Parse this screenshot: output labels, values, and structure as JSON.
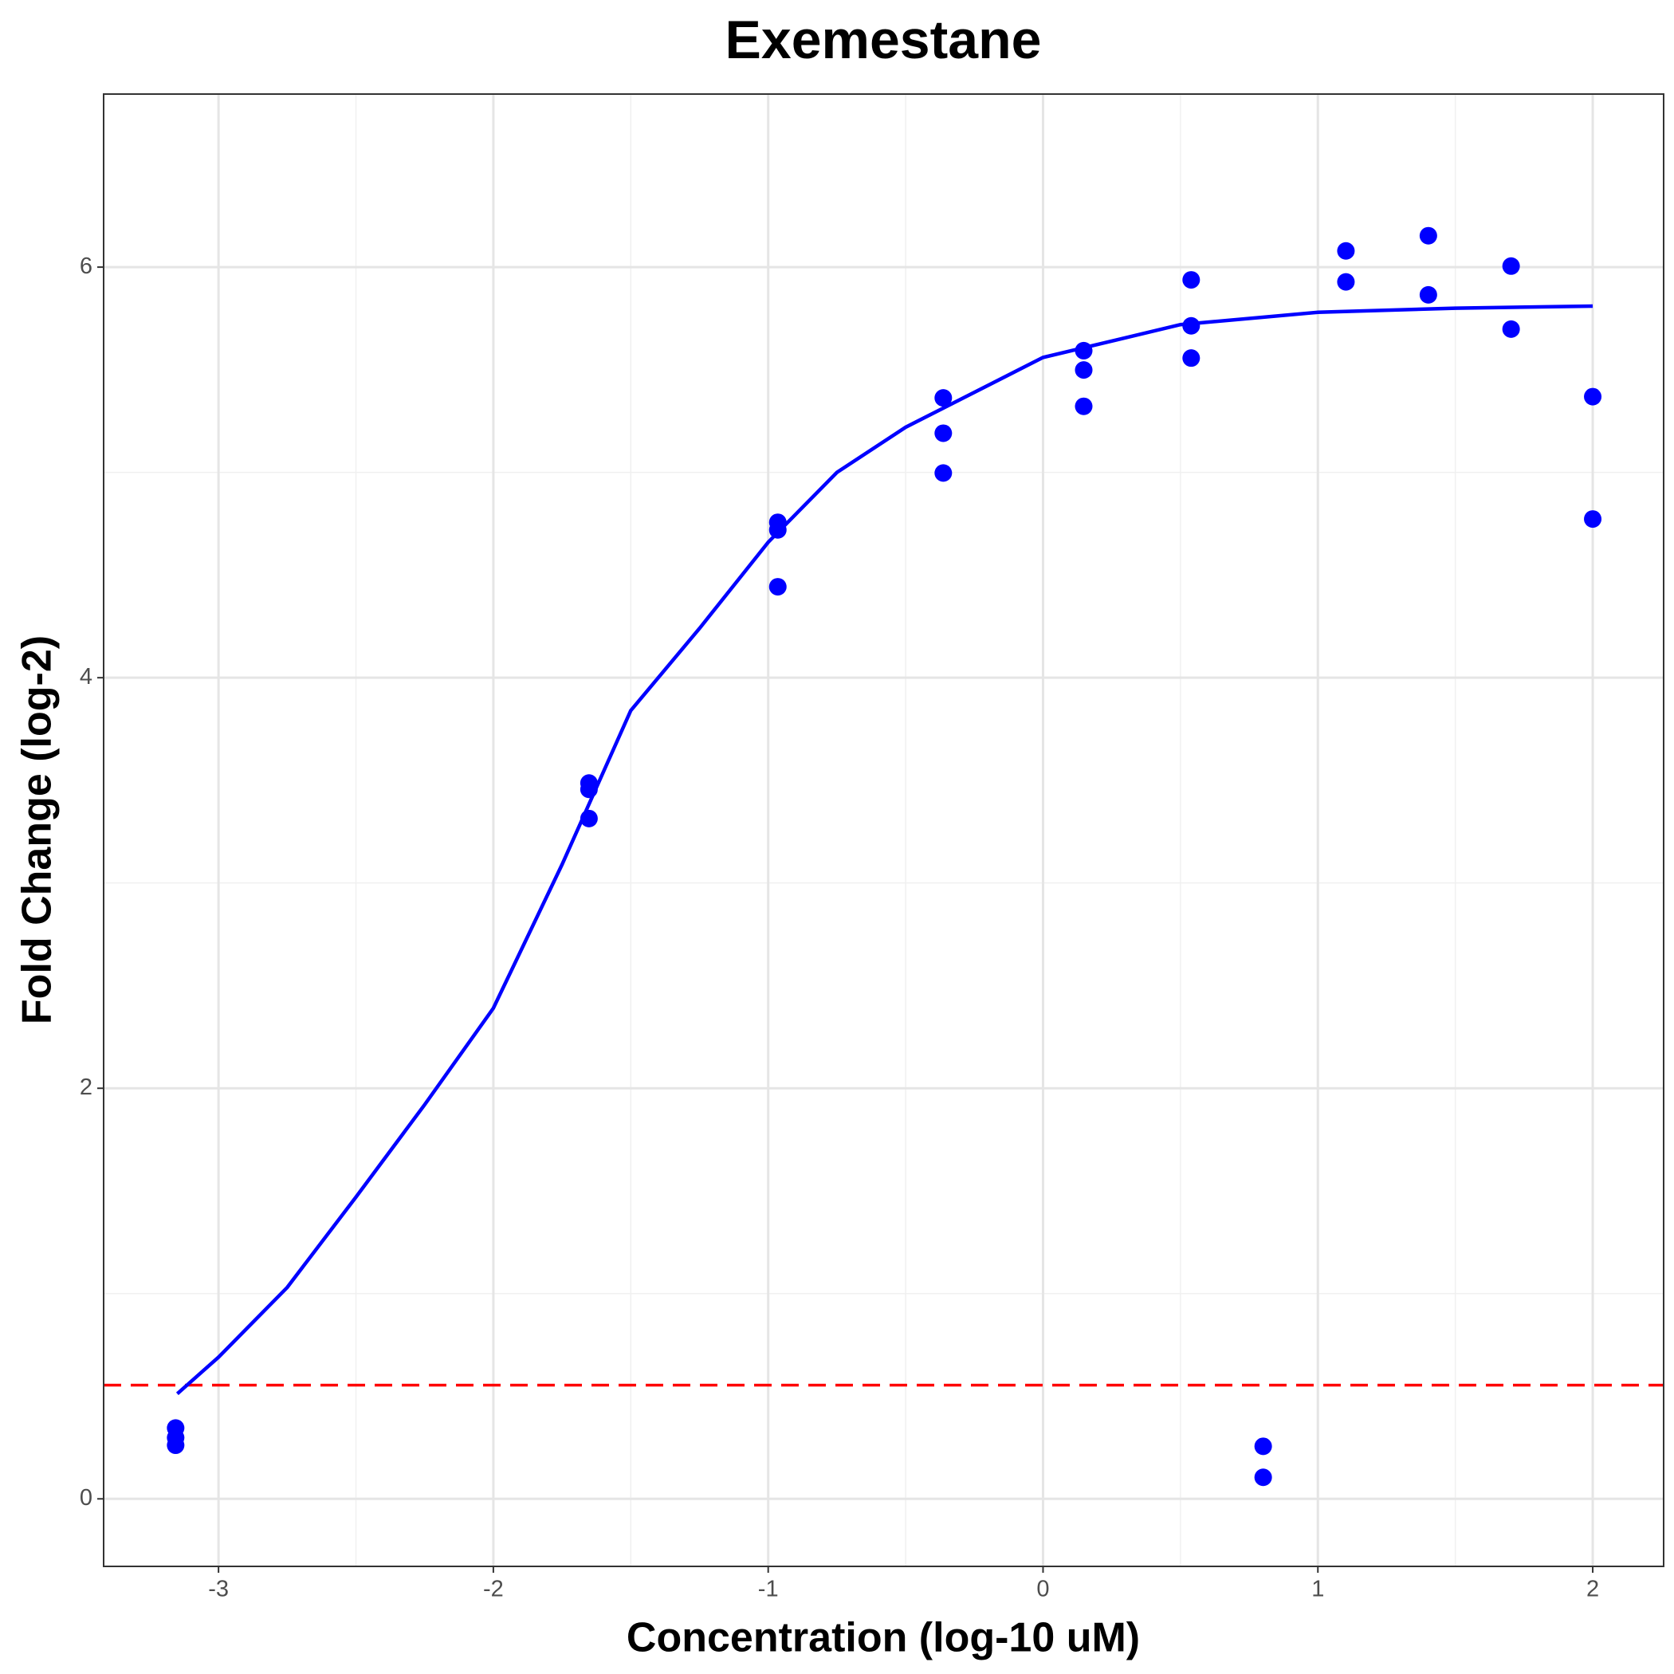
{
  "chart_data": {
    "type": "scatter",
    "title": "Exemestane",
    "xlabel": "Concentration (log-10 uM)",
    "ylabel": "Fold Change (log-2)",
    "xlim": [
      -3.418,
      2.258
    ],
    "ylim": [
      -0.329,
      6.843
    ],
    "xticks": [
      -3,
      -2,
      -1,
      0,
      1,
      2
    ],
    "yticks": [
      0,
      2,
      4,
      6
    ],
    "x_minor_ticks": [
      -2.5,
      -1.5,
      -0.5,
      0.5,
      1.5
    ],
    "y_minor_ticks": [
      1,
      3,
      5
    ],
    "grid": true,
    "series": [
      {
        "type": "scatter",
        "color": "#0000ff",
        "x": [
          -3.156,
          -3.156,
          -3.156,
          -1.652,
          -1.652,
          -1.652,
          -0.965,
          -0.965,
          -0.965,
          -0.363,
          -0.363,
          -0.363,
          0.148,
          0.148,
          0.148,
          0.539,
          0.539,
          0.539,
          0.801,
          0.801,
          1.102,
          1.102,
          1.402,
          1.402,
          1.703,
          1.703,
          2.0,
          2.0
        ],
        "values": [
          0.345,
          0.298,
          0.261,
          3.487,
          3.456,
          3.314,
          4.757,
          4.72,
          4.443,
          5.363,
          5.191,
          4.997,
          5.593,
          5.499,
          5.322,
          5.938,
          5.714,
          5.557,
          0.256,
          0.105,
          6.079,
          5.928,
          6.153,
          5.865,
          6.005,
          5.698,
          5.369,
          4.773
        ]
      },
      {
        "type": "line",
        "color": "#0000ff",
        "x": [
          -3.15,
          -3.0,
          -2.75,
          -2.5,
          -2.25,
          -2.0,
          -1.75,
          -1.5,
          -1.25,
          -1.0,
          -0.75,
          -0.5,
          0.0,
          0.5,
          1.0,
          1.5,
          2.0
        ],
        "values": [
          0.512,
          0.69,
          1.03,
          1.47,
          1.92,
          2.39,
          3.09,
          3.84,
          4.24,
          4.66,
          5.0,
          5.22,
          5.56,
          5.72,
          5.78,
          5.8,
          5.81
        ]
      }
    ],
    "hline": {
      "value": 0.554,
      "color": "#ff0000",
      "style": "dashed"
    }
  }
}
